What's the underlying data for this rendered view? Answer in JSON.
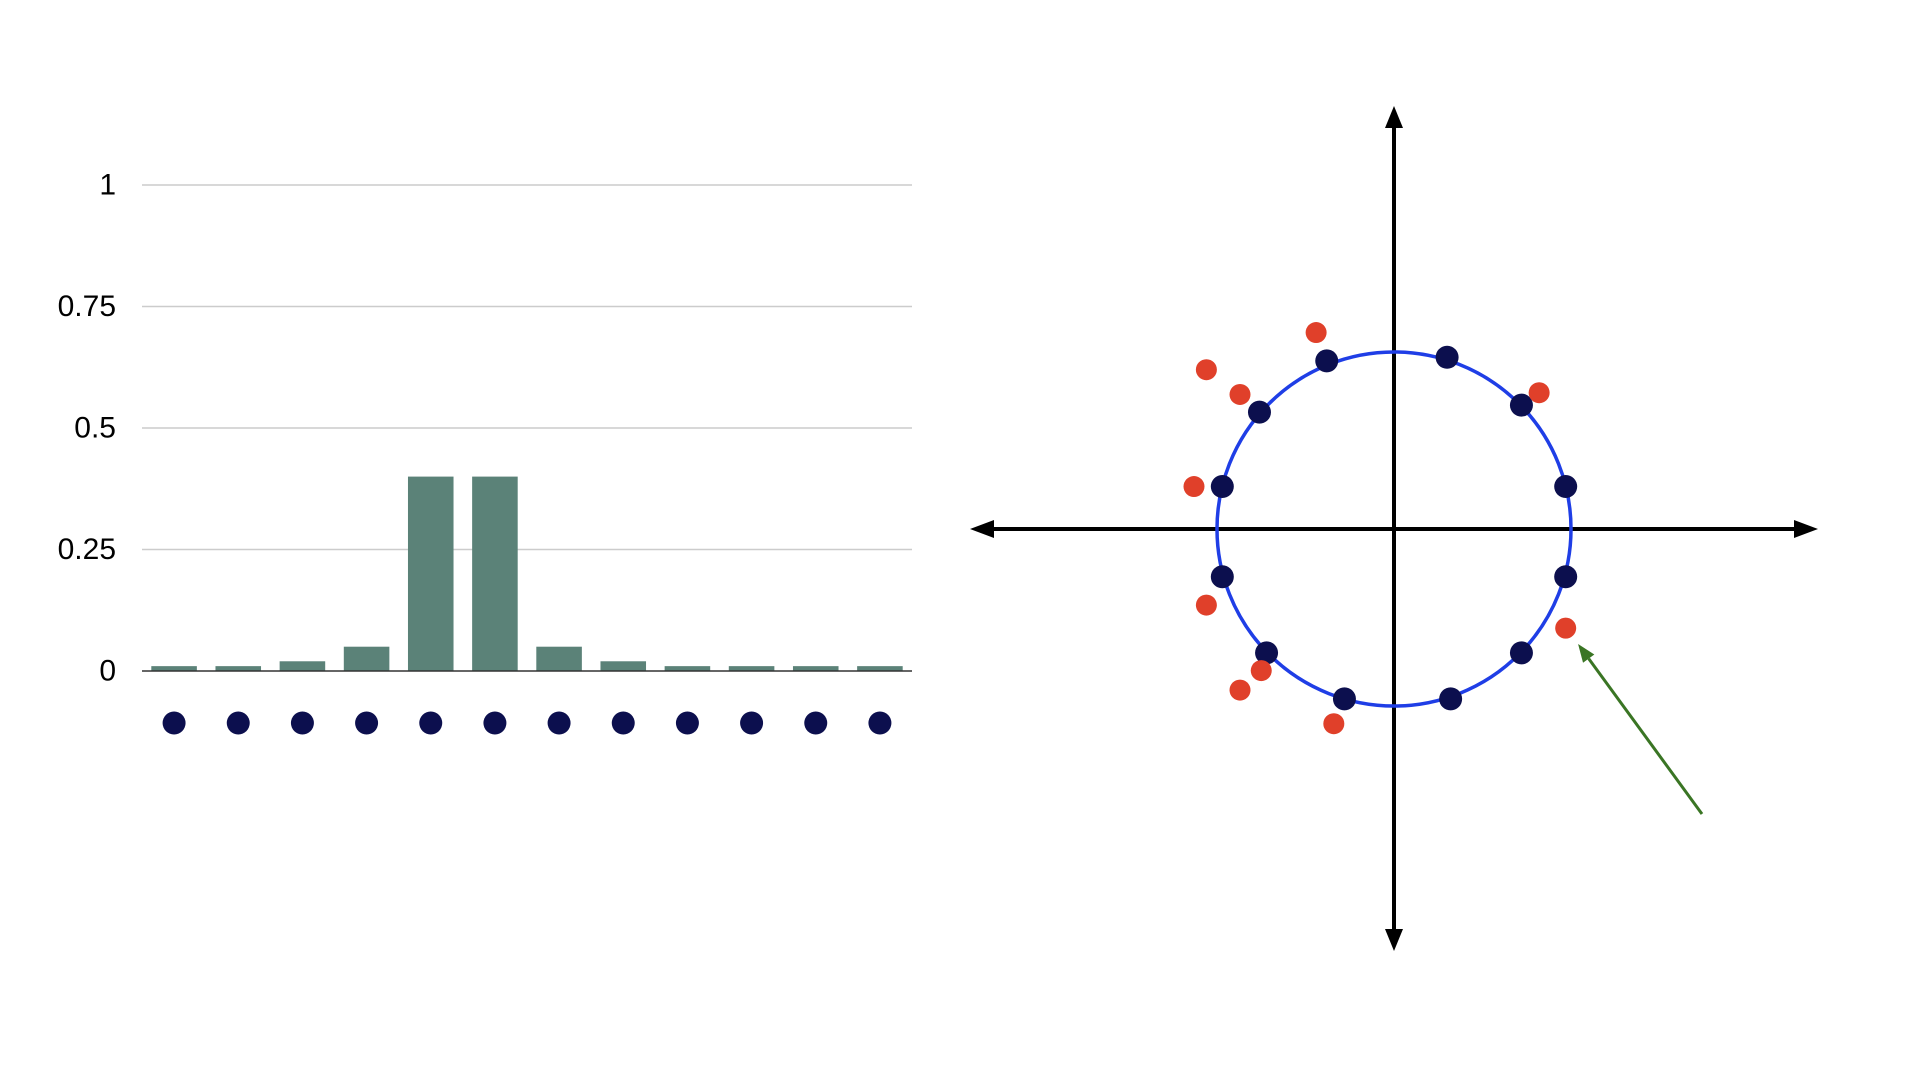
{
  "colors": {
    "bar": "#5b8278",
    "grid": "#cccccc",
    "baseline": "#333333",
    "dot_navy": "#0c0f4e",
    "dot_red": "#e0402a",
    "circle": "#1f3ee6",
    "axis": "#000000",
    "arrow_green": "#3a7524"
  },
  "chart_data": [
    {
      "type": "bar",
      "title": "",
      "xlabel": "",
      "ylabel": "",
      "ylim": [
        0,
        1
      ],
      "ytick_values": [
        0,
        0.25,
        0.5,
        0.75,
        1
      ],
      "ytick_labels": [
        "0",
        "0.25",
        "0.5",
        "0.75",
        "1"
      ],
      "grid": true,
      "values": [
        0.01,
        0.01,
        0.02,
        0.05,
        0.4,
        0.4,
        0.05,
        0.02,
        0.01,
        0.01,
        0.01,
        0.01
      ],
      "category_markers": "navy dots below each bar"
    },
    {
      "type": "scatter",
      "title": "",
      "description_axes": "cartesian axes with arrowheads, no tick labels",
      "xlim": [
        -1.4,
        1.4
      ],
      "ylim": [
        -1.4,
        1.4
      ],
      "unit_circle_radius": 1,
      "series": [
        {
          "color": "navy",
          "points": [
            [
              0.3,
              0.97
            ],
            [
              0.72,
              0.7
            ],
            [
              0.97,
              0.24
            ],
            [
              0.97,
              -0.27
            ],
            [
              0.72,
              -0.7
            ],
            [
              0.32,
              -0.96
            ],
            [
              -0.28,
              -0.96
            ],
            [
              -0.72,
              -0.7
            ],
            [
              -0.97,
              -0.27
            ],
            [
              -0.97,
              0.24
            ],
            [
              -0.76,
              0.66
            ],
            [
              -0.38,
              0.95
            ]
          ]
        },
        {
          "color": "red",
          "points": [
            [
              -0.44,
              1.11
            ],
            [
              -1.06,
              0.9
            ],
            [
              -0.87,
              0.76
            ],
            [
              0.82,
              0.77
            ],
            [
              -1.13,
              0.24
            ],
            [
              -1.06,
              -0.43
            ],
            [
              0.97,
              -0.56
            ],
            [
              -0.75,
              -0.8
            ],
            [
              -0.87,
              -0.91
            ],
            [
              -0.34,
              -1.1
            ]
          ]
        }
      ],
      "annotation_arrow": {
        "from": [
          1.74,
          -1.61
        ],
        "to": [
          1.04,
          -0.65
        ]
      }
    }
  ]
}
